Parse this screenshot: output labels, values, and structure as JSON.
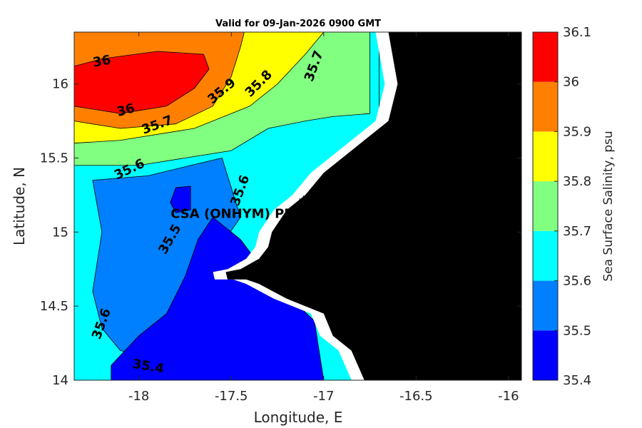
{
  "chart_data": {
    "type": "heatmap",
    "title": "Valid for 09-Jan-2026 0900 GMT",
    "xlabel": "Longitude, E",
    "ylabel": "Latitude, N",
    "xlim": [
      -18.35,
      -15.93
    ],
    "ylim": [
      14.0,
      16.35
    ],
    "xticks": [
      {
        "value": -18,
        "label": "-18"
      },
      {
        "value": -17.5,
        "label": "-17.5"
      },
      {
        "value": -17,
        "label": "-17"
      },
      {
        "value": -16.5,
        "label": "-16.5"
      },
      {
        "value": -16,
        "label": "-16"
      }
    ],
    "yticks": [
      {
        "value": 14,
        "label": "14"
      },
      {
        "value": 14.5,
        "label": "14.5"
      },
      {
        "value": 15,
        "label": "15"
      },
      {
        "value": 15.5,
        "label": "15.5"
      },
      {
        "value": 16,
        "label": "16"
      }
    ],
    "colorbar": {
      "label": "Sea Surface Salinity, psu",
      "levels": [
        {
          "low": 35.4,
          "high": 35.5,
          "color": "#0000ff"
        },
        {
          "low": 35.5,
          "high": 35.6,
          "color": "#0080ff"
        },
        {
          "low": 35.6,
          "high": 35.7,
          "color": "#00ffff"
        },
        {
          "low": 35.7,
          "high": 35.8,
          "color": "#80ff80"
        },
        {
          "low": 35.8,
          "high": 35.9,
          "color": "#ffff00"
        },
        {
          "low": 35.9,
          "high": 36.0,
          "color": "#ff8000"
        },
        {
          "low": 36.0,
          "high": 36.1,
          "color": "#ff0000"
        }
      ],
      "ticks": [
        {
          "value": 35.4,
          "label": "35.4"
        },
        {
          "value": 35.5,
          "label": "35.5"
        },
        {
          "value": 35.6,
          "label": "35.6"
        },
        {
          "value": 35.7,
          "label": "35.7"
        },
        {
          "value": 35.8,
          "label": "35.8"
        },
        {
          "value": 35.9,
          "label": "35.9"
        },
        {
          "value": 36.0,
          "label": "36"
        },
        {
          "value": 36.1,
          "label": "36.1"
        }
      ]
    },
    "regions": [
      {
        "level": 35.6,
        "points": [
          [
            -18.35,
            14.0
          ],
          [
            -16.7,
            14.0
          ],
          [
            -16.7,
            16.35
          ],
          [
            -18.35,
            16.35
          ]
        ]
      },
      {
        "level": 35.7,
        "points": [
          [
            -18.35,
            15.45
          ],
          [
            -18.0,
            15.45
          ],
          [
            -17.5,
            15.55
          ],
          [
            -17.3,
            15.7
          ],
          [
            -17.1,
            15.75
          ],
          [
            -16.95,
            15.78
          ],
          [
            -16.75,
            15.8
          ],
          [
            -16.75,
            16.35
          ],
          [
            -18.35,
            16.35
          ]
        ]
      },
      {
        "level": 35.8,
        "points": [
          [
            -18.35,
            15.6
          ],
          [
            -18.1,
            15.62
          ],
          [
            -17.7,
            15.7
          ],
          [
            -17.4,
            15.85
          ],
          [
            -17.25,
            16.0
          ],
          [
            -17.1,
            16.2
          ],
          [
            -17.0,
            16.35
          ],
          [
            -18.35,
            16.35
          ]
        ]
      },
      {
        "level": 35.9,
        "points": [
          [
            -18.35,
            15.75
          ],
          [
            -18.1,
            15.7
          ],
          [
            -17.8,
            15.73
          ],
          [
            -17.6,
            15.85
          ],
          [
            -17.5,
            16.05
          ],
          [
            -17.45,
            16.25
          ],
          [
            -17.43,
            16.35
          ],
          [
            -18.35,
            16.35
          ]
        ]
      },
      {
        "level": 36.0,
        "points": [
          [
            -18.35,
            15.85
          ],
          [
            -18.1,
            15.8
          ],
          [
            -17.85,
            15.85
          ],
          [
            -17.7,
            15.97
          ],
          [
            -17.62,
            16.1
          ],
          [
            -17.65,
            16.2
          ],
          [
            -17.9,
            16.22
          ],
          [
            -18.2,
            16.17
          ],
          [
            -18.35,
            16.12
          ]
        ]
      },
      {
        "level": 35.5,
        "points": [
          [
            -18.25,
            14.6
          ],
          [
            -18.2,
            15.0
          ],
          [
            -18.25,
            15.35
          ],
          [
            -17.95,
            15.38
          ],
          [
            -17.72,
            15.45
          ],
          [
            -17.55,
            15.5
          ],
          [
            -17.5,
            15.3
          ],
          [
            -17.45,
            15.1
          ],
          [
            -17.55,
            14.92
          ],
          [
            -17.6,
            14.75
          ],
          [
            -17.7,
            14.5
          ],
          [
            -17.8,
            14.25
          ],
          [
            -17.9,
            14.15
          ],
          [
            -18.1,
            14.2
          ],
          [
            -18.2,
            14.35
          ]
        ]
      },
      {
        "level": 35.4,
        "points": [
          [
            -18.15,
            14.0
          ],
          [
            -17.0,
            14.0
          ],
          [
            -17.05,
            14.4
          ],
          [
            -17.3,
            14.7
          ],
          [
            -17.45,
            14.95
          ],
          [
            -17.6,
            15.1
          ],
          [
            -17.68,
            14.95
          ],
          [
            -17.75,
            14.7
          ],
          [
            -17.85,
            14.45
          ],
          [
            -18.0,
            14.3
          ],
          [
            -18.15,
            14.1
          ]
        ]
      },
      {
        "level": 35.4,
        "points": [
          [
            -17.8,
            15.3
          ],
          [
            -17.72,
            15.31
          ],
          [
            -17.72,
            15.15
          ],
          [
            -17.8,
            15.13
          ],
          [
            -17.83,
            15.2
          ]
        ]
      }
    ],
    "contour_labels": [
      {
        "text": "36",
        "lon": -18.2,
        "lat": 16.15,
        "angle": -10
      },
      {
        "text": "36",
        "lon": -18.07,
        "lat": 15.82,
        "angle": -15
      },
      {
        "text": "35.9",
        "lon": -17.55,
        "lat": 15.95,
        "angle": -40
      },
      {
        "text": "35.8",
        "lon": -17.35,
        "lat": 16.0,
        "angle": -45
      },
      {
        "text": "35.7",
        "lon": -17.05,
        "lat": 16.12,
        "angle": -70
      },
      {
        "text": "35.7",
        "lon": -17.9,
        "lat": 15.72,
        "angle": -20
      },
      {
        "text": "35.6",
        "lon": -18.05,
        "lat": 15.42,
        "angle": -25
      },
      {
        "text": "35.6",
        "lon": -17.45,
        "lat": 15.28,
        "angle": -70
      },
      {
        "text": "35.5",
        "lon": -17.83,
        "lat": 14.95,
        "angle": -60
      },
      {
        "text": "35.6",
        "lon": -18.2,
        "lat": 14.38,
        "angle": -70
      },
      {
        "text": "35.4",
        "lon": -17.95,
        "lat": 14.09,
        "angle": 10
      }
    ],
    "land": [
      [
        -16.65,
        16.35
      ],
      [
        -16.6,
        16.0
      ],
      [
        -16.65,
        15.75
      ],
      [
        -16.8,
        15.6
      ],
      [
        -16.9,
        15.5
      ],
      [
        -17.0,
        15.4
      ],
      [
        -17.1,
        15.25
      ],
      [
        -17.2,
        15.15
      ],
      [
        -17.28,
        15.0
      ],
      [
        -17.3,
        14.9
      ],
      [
        -17.35,
        14.82
      ],
      [
        -17.45,
        14.75
      ],
      [
        -17.53,
        14.73
      ],
      [
        -17.52,
        14.68
      ],
      [
        -17.42,
        14.68
      ],
      [
        -17.35,
        14.65
      ],
      [
        -17.2,
        14.55
      ],
      [
        -17.0,
        14.45
      ],
      [
        -16.95,
        14.3
      ],
      [
        -16.85,
        14.2
      ],
      [
        -16.78,
        14.0
      ],
      [
        -15.93,
        14.0
      ],
      [
        -15.93,
        16.35
      ]
    ],
    "site": {
      "name": "CSA (ONHYM) PPL EE",
      "lon": -17.11,
      "lat": 15.22
    }
  }
}
